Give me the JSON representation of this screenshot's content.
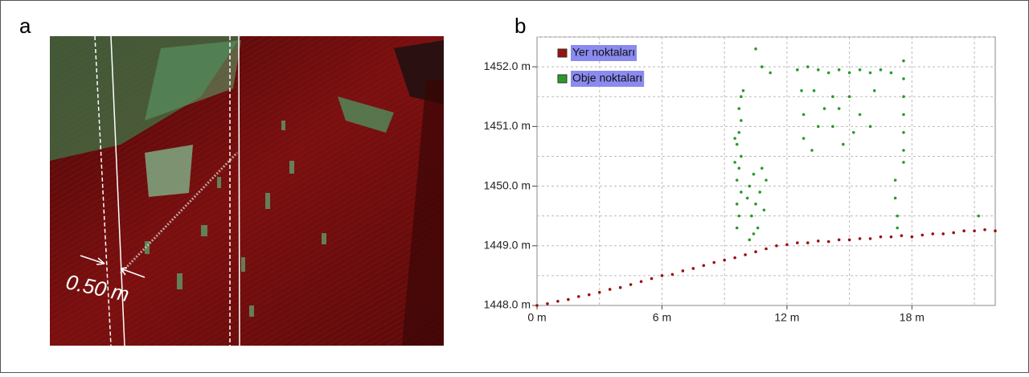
{
  "panel_labels": [
    "a",
    "b"
  ],
  "image_annotation": "0.50 m",
  "chart_data": {
    "type": "scatter",
    "xlim": [
      0,
      22
    ],
    "ylim": [
      1448,
      1452.5
    ],
    "xticks": [
      {
        "value": 0,
        "label": "0 m"
      },
      {
        "value": 6,
        "label": "6 m"
      },
      {
        "value": 12,
        "label": "12 m"
      },
      {
        "value": 18,
        "label": "18 m"
      }
    ],
    "yticks": [
      {
        "value": 1448,
        "label": "1448.0 m"
      },
      {
        "value": 1449,
        "label": "1449.0 m"
      },
      {
        "value": 1450,
        "label": "1450.0 m"
      },
      {
        "value": 1451,
        "label": "1451.0 m"
      },
      {
        "value": 1452,
        "label": "1452.0 m"
      }
    ],
    "xgrid": [
      3,
      6,
      9,
      12,
      15,
      18,
      21
    ],
    "ygrid": [
      1448.5,
      1449,
      1449.5,
      1450,
      1450.5,
      1451,
      1451.5,
      1452,
      1452.5
    ],
    "grid": true,
    "legend": "upper left",
    "series": [
      {
        "name": "Yer noktaları",
        "color": "#9b1010",
        "x": [
          0,
          0.5,
          1,
          1.5,
          2,
          2.5,
          3,
          3.5,
          4,
          4.5,
          5,
          5.5,
          6,
          6.5,
          7,
          7.5,
          8,
          8.5,
          9,
          9.5,
          10,
          10.5,
          11,
          11.5,
          12,
          12.5,
          13,
          13.5,
          14,
          14.5,
          15,
          15.5,
          16,
          16.5,
          17,
          17.5,
          18,
          18.5,
          19,
          19.5,
          20,
          20.5,
          21,
          21.5,
          22
        ],
        "values": [
          1448.0,
          1448.03,
          1448.07,
          1448.1,
          1448.15,
          1448.18,
          1448.22,
          1448.27,
          1448.3,
          1448.35,
          1448.4,
          1448.45,
          1448.5,
          1448.52,
          1448.58,
          1448.62,
          1448.67,
          1448.72,
          1448.76,
          1448.8,
          1448.85,
          1448.9,
          1448.95,
          1449.0,
          1449.02,
          1449.05,
          1449.05,
          1449.08,
          1449.07,
          1449.1,
          1449.1,
          1449.12,
          1449.12,
          1449.15,
          1449.15,
          1449.17,
          1449.15,
          1449.18,
          1449.2,
          1449.2,
          1449.22,
          1449.25,
          1449.25,
          1449.27,
          1449.25
        ]
      },
      {
        "name": "Obje noktaları",
        "color": "#2a9a2a",
        "x": [
          9.6,
          9.7,
          9.6,
          9.8,
          9.6,
          9.7,
          9.8,
          9.6,
          9.7,
          9.8,
          9.7,
          9.8,
          9.9,
          9.5,
          9.5,
          10.2,
          10.4,
          10.6,
          10.3,
          10.5,
          10.7,
          10.2,
          10.4,
          10.8,
          11.0,
          10.9,
          10.1,
          10.5,
          10.8,
          11.2,
          12.5,
          13,
          13.5,
          14,
          14.5,
          15,
          15.5,
          16,
          16.5,
          17,
          12.7,
          12.8,
          12.8,
          13.3,
          13.8,
          14.2,
          14.7,
          13.5,
          14.2,
          15,
          15.5,
          16.2,
          15.2,
          16,
          14.5,
          13.2,
          17.6,
          17.6,
          17.6,
          17.6,
          17.6,
          17.6,
          17.6,
          17.2,
          17.2,
          17.3,
          17.3,
          21.2
        ],
        "values": [
          1449.3,
          1449.5,
          1449.7,
          1449.9,
          1450.1,
          1450.3,
          1450.5,
          1450.7,
          1450.9,
          1451.1,
          1451.3,
          1451.5,
          1451.6,
          1450.8,
          1450.4,
          1449.1,
          1449.2,
          1449.3,
          1449.5,
          1449.7,
          1449.9,
          1450.0,
          1450.2,
          1450.3,
          1450.1,
          1449.6,
          1449.8,
          1452.3,
          1452.0,
          1451.9,
          1451.95,
          1452.0,
          1451.95,
          1451.9,
          1451.95,
          1451.9,
          1451.95,
          1451.9,
          1451.95,
          1451.9,
          1451.6,
          1451.2,
          1450.8,
          1451.6,
          1451.3,
          1451.0,
          1450.7,
          1451.0,
          1451.5,
          1451.5,
          1451.2,
          1451.6,
          1450.9,
          1451.0,
          1451.3,
          1450.6,
          1452.1,
          1451.8,
          1451.5,
          1451.2,
          1450.9,
          1450.6,
          1450.4,
          1450.1,
          1449.8,
          1449.5,
          1449.3,
          1449.5
        ]
      }
    ]
  }
}
